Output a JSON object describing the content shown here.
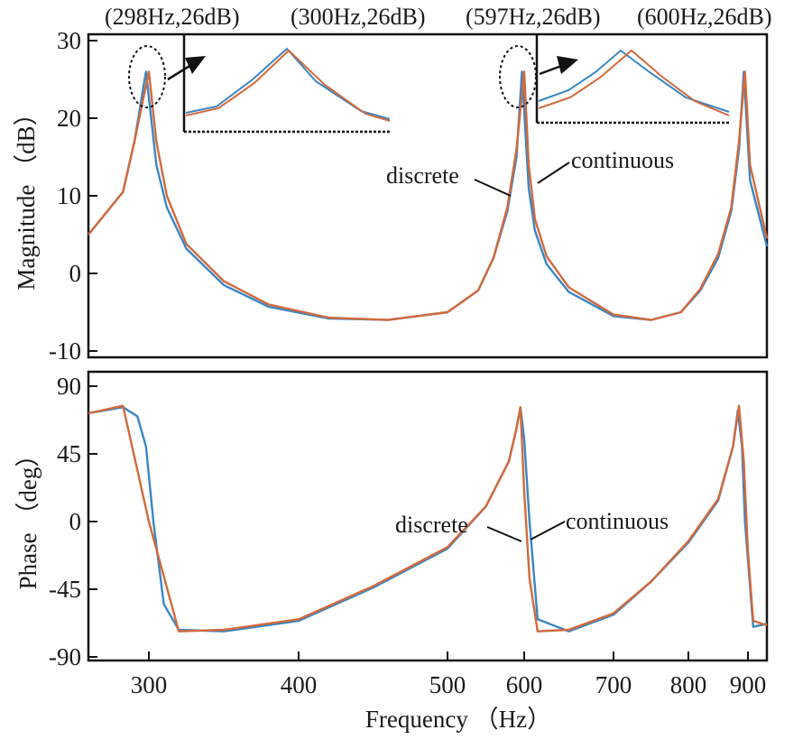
{
  "chart_data": [
    {
      "type": "line",
      "xlabel": "",
      "ylabel": "Magnitude （dB）",
      "xlim": [
        258,
        918
      ],
      "ylim": [
        -10,
        30
      ],
      "yticks": [
        30,
        20,
        10,
        0,
        -10
      ],
      "axis_scale": "nonlinear (tick positions 300,400,500,600,700,800,900 unevenly spaced)",
      "grid": false,
      "peak_annotations": [
        "(298Hz,26dB)",
        "(300Hz,26dB)",
        "(597Hz,26dB)",
        "(600Hz,26dB)"
      ],
      "inline_labels": [
        "discrete",
        "continuous"
      ],
      "series": [
        {
          "name": "discrete",
          "color": "#3a86c4",
          "x": [
            258,
            282,
            290,
            298,
            305,
            312,
            325,
            350,
            380,
            420,
            460,
            500,
            540,
            560,
            578,
            590,
            597,
            605,
            612,
            625,
            650,
            700,
            750,
            790,
            820,
            850,
            872,
            885,
            893,
            902,
            918
          ],
          "y": [
            5,
            10.5,
            17,
            26,
            14,
            8.5,
            3.2,
            -1.5,
            -4.3,
            -5.8,
            -6,
            -5,
            -2.2,
            2,
            8,
            15,
            26,
            11,
            5.5,
            1.2,
            -2.4,
            -5.5,
            -6,
            -5,
            -2.2,
            2,
            8,
            16,
            26,
            12,
            3.5
          ]
        },
        {
          "name": "continuous",
          "color": "#d2693c",
          "x": [
            258,
            282,
            290,
            300,
            305,
            312,
            325,
            350,
            380,
            420,
            460,
            500,
            540,
            560,
            578,
            590,
            600,
            605,
            612,
            625,
            650,
            700,
            750,
            790,
            820,
            850,
            872,
            885,
            895,
            902,
            918
          ],
          "y": [
            5,
            10.5,
            17,
            26,
            17,
            10,
            3.8,
            -1,
            -4,
            -5.7,
            -6,
            -5,
            -2.2,
            2,
            8.5,
            16,
            26,
            14,
            7,
            2.2,
            -1.8,
            -5.3,
            -6,
            -5,
            -2,
            2.5,
            8.5,
            17,
            26,
            14,
            4.5
          ]
        }
      ]
    },
    {
      "type": "line",
      "xlabel": "Frequency （Hz）",
      "ylabel": "Phase （deg）",
      "xlim": [
        258,
        918
      ],
      "ylim": [
        -90,
        90
      ],
      "yticks": [
        90,
        45,
        0,
        -45,
        -90
      ],
      "xticks": [
        "300",
        "400",
        "500",
        "600",
        "700",
        "800",
        "900"
      ],
      "grid": false,
      "inline_labels": [
        "discrete",
        "continuous"
      ],
      "series": [
        {
          "name": "discrete",
          "color": "#3a86c4",
          "x": [
            258,
            282,
            292,
            298,
            303,
            310,
            320,
            350,
            400,
            450,
            500,
            550,
            580,
            590,
            595,
            600,
            606,
            615,
            650,
            700,
            750,
            800,
            850,
            875,
            883,
            890,
            895,
            905,
            918
          ],
          "y": [
            72,
            76,
            70,
            50,
            0,
            -55,
            -72,
            -73,
            -66,
            -44,
            -18,
            10,
            40,
            62,
            76,
            55,
            0,
            -65,
            -73,
            -62,
            -40,
            -14,
            14,
            50,
            74,
            50,
            0,
            -70,
            -68
          ]
        },
        {
          "name": "continuous",
          "color": "#d2693c",
          "x": [
            258,
            282,
            300,
            320,
            350,
            400,
            450,
            500,
            550,
            580,
            590,
            595,
            600,
            606,
            615,
            650,
            700,
            750,
            800,
            850,
            875,
            885,
            893,
            900,
            905,
            918
          ],
          "y": [
            72,
            77,
            0,
            -73,
            -72,
            -65,
            -43,
            -17,
            10,
            40,
            62,
            76,
            20,
            -38,
            -73,
            -72,
            -61,
            -40,
            -13,
            15,
            50,
            77,
            40,
            -20,
            -66,
            -69
          ]
        }
      ]
    }
  ],
  "colors": {
    "discrete": "#3a86c4",
    "continuous": "#d2693c",
    "axis": "#111111"
  }
}
